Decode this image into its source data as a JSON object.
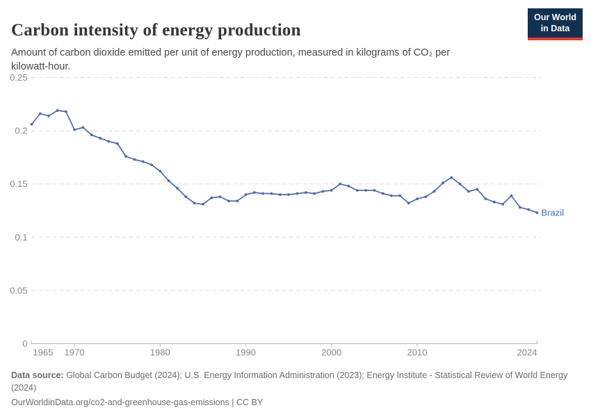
{
  "header": {
    "title": "Carbon intensity of energy production",
    "subtitle": "Amount of carbon dioxide emitted per unit of energy production, measured in kilograms of CO₂ per kilowatt-hour.",
    "logo": {
      "line1": "Our World",
      "line2": "in Data",
      "bg_color": "#12304f",
      "accent_color": "#dc3d33"
    }
  },
  "chart_data": {
    "type": "line",
    "title": "Carbon intensity of energy production",
    "xlabel": "",
    "ylabel": "kilograms of CO₂ per kilowatt-hour",
    "xlim": [
      1965,
      2024
    ],
    "ylim": [
      0,
      0.25
    ],
    "grid": "horizontal-dashed",
    "legend_position": "end-of-line-label",
    "x_ticks": [
      1965,
      1970,
      1980,
      1990,
      2000,
      2010,
      2024
    ],
    "x_tick_labels": [
      "1965",
      "1970",
      "1980",
      "1990",
      "2000",
      "2010",
      "2024"
    ],
    "y_ticks": [
      0,
      0.05,
      0.1,
      0.15,
      0.2,
      0.25
    ],
    "y_tick_labels": [
      "0",
      "0.05",
      "0.1",
      "0.15",
      "0.2",
      "0.25"
    ],
    "series": [
      {
        "name": "Brazil",
        "color": "#4c6ba8",
        "x": [
          1965,
          1966,
          1967,
          1968,
          1969,
          1970,
          1971,
          1972,
          1973,
          1974,
          1975,
          1976,
          1977,
          1978,
          1979,
          1980,
          1981,
          1982,
          1983,
          1984,
          1985,
          1986,
          1987,
          1988,
          1989,
          1990,
          1991,
          1992,
          1993,
          1994,
          1995,
          1996,
          1997,
          1998,
          1999,
          2000,
          2001,
          2002,
          2003,
          2004,
          2005,
          2006,
          2007,
          2008,
          2009,
          2010,
          2011,
          2012,
          2013,
          2014,
          2015,
          2016,
          2017,
          2018,
          2019,
          2020,
          2021,
          2022,
          2023,
          2024
        ],
        "values": [
          0.206,
          0.216,
          0.214,
          0.219,
          0.218,
          0.201,
          0.203,
          0.196,
          0.193,
          0.19,
          0.188,
          0.176,
          0.173,
          0.171,
          0.168,
          0.162,
          0.153,
          0.146,
          0.138,
          0.132,
          0.131,
          0.137,
          0.138,
          0.134,
          0.134,
          0.14,
          0.142,
          0.141,
          0.141,
          0.14,
          0.14,
          0.141,
          0.142,
          0.141,
          0.143,
          0.144,
          0.15,
          0.148,
          0.144,
          0.144,
          0.144,
          0.141,
          0.139,
          0.139,
          0.132,
          0.136,
          0.138,
          0.143,
          0.151,
          0.156,
          0.15,
          0.143,
          0.145,
          0.136,
          0.133,
          0.131,
          0.139,
          0.128,
          0.126,
          0.123
        ]
      }
    ]
  },
  "footer": {
    "source_label": "Data source:",
    "source_text": " Global Carbon Budget (2024); U.S. Energy Information Administration (2023); Energy Institute - Statistical Review of World Energy (2024)",
    "url_text": "OurWorldinData.org/co2-and-greenhouse-gas-emissions",
    "license_text": " | CC BY"
  },
  "colors": {
    "background": "#ffffff",
    "title": "#363636",
    "subtitle": "#46484c",
    "footer": "#6d6d6d",
    "gridline": "#dedede",
    "axis_line": "#b3b3b3",
    "tick_label": "#878787",
    "series_line": "#4c6ba8"
  }
}
